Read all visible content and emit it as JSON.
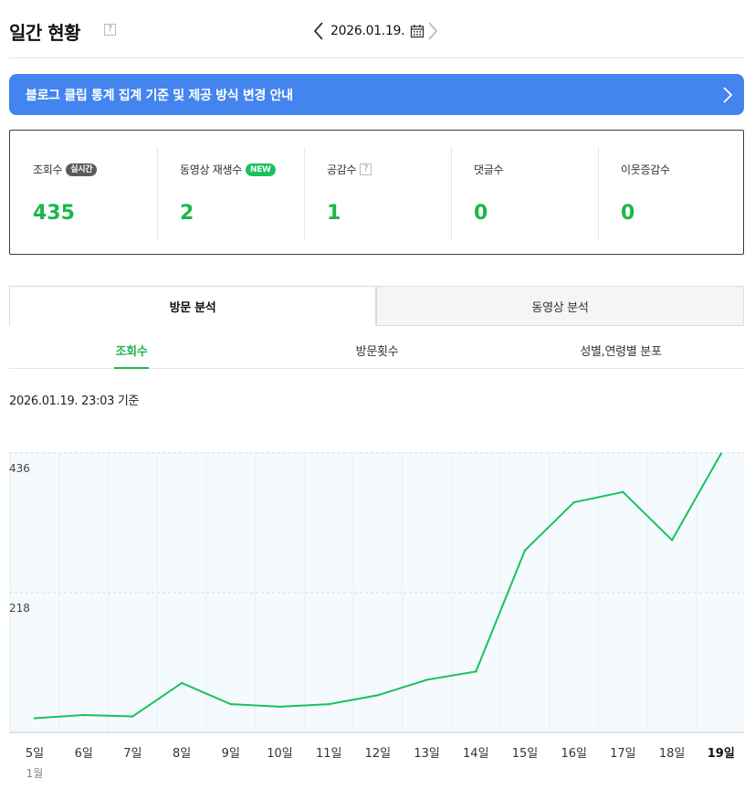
{
  "header": {
    "title": "일간 현황",
    "help": "?",
    "date": "2026.01.19.",
    "prev_icon": "chevron-left-icon",
    "next_icon": "chevron-right-icon",
    "calendar_icon": "calendar-icon"
  },
  "notice": {
    "text": "블로그 클립 통계 집계 기준 및 제공 방식 변경 안내",
    "background": "#4384ee"
  },
  "stats": [
    {
      "label": "조회수",
      "badge": "실시간",
      "value": "435"
    },
    {
      "label": "동영상 재생수",
      "badge": "NEW",
      "value": "2"
    },
    {
      "label": "공감수",
      "help": "?",
      "value": "1"
    },
    {
      "label": "댓글수",
      "value": "0"
    },
    {
      "label": "이웃증감수",
      "value": "0"
    }
  ],
  "tabs": [
    {
      "label": "방문 분석",
      "active": true
    },
    {
      "label": "동영상 분석",
      "active": false
    }
  ],
  "subtabs": [
    {
      "label": "조회수",
      "active": true
    },
    {
      "label": "방문횟수",
      "active": false
    },
    {
      "label": "성별,연령별 분포",
      "active": false
    }
  ],
  "basis": "2026.01.19. 23:03 기준",
  "accent_color": "#19b84b",
  "chart_data": {
    "type": "line",
    "categories": [
      "5일",
      "6일",
      "7일",
      "8일",
      "9일",
      "10일",
      "11일",
      "12일",
      "13일",
      "14일",
      "15일",
      "16일",
      "17일",
      "18일",
      "19일"
    ],
    "month_label": "1월",
    "y_ticks": [
      "436",
      "218"
    ],
    "ylim": [
      0,
      436
    ],
    "series": [
      {
        "values": [
          22,
          27,
          25,
          77,
          44,
          40,
          44,
          58,
          82,
          95,
          284,
          359,
          375,
          300,
          435
        ]
      }
    ],
    "line_color": "#19c25a",
    "grid": true
  }
}
